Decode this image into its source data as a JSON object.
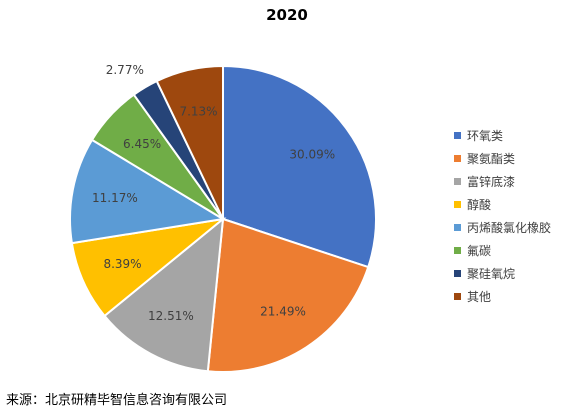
{
  "chart_data": {
    "type": "pie",
    "title": "2020",
    "categories": [
      "环氧类",
      "聚氨酯类",
      "富锌底漆",
      "醇酸",
      "丙烯酸氯化橡胶",
      "氟碳",
      "聚硅氧烷",
      "其他"
    ],
    "values": [
      30.09,
      21.49,
      12.51,
      8.39,
      11.17,
      6.45,
      2.77,
      7.13
    ],
    "labels": [
      "30.09%",
      "21.49%",
      "12.51%",
      "8.39%",
      "11.17%",
      "6.45%",
      "2.77%",
      "7.13%"
    ],
    "colors": [
      "#4472C4",
      "#ED7D31",
      "#A5A5A5",
      "#FFC000",
      "#5B9BD5",
      "#70AD47",
      "#264478",
      "#9E480E"
    ],
    "legend_position": "right",
    "start_angle": "12 o'clock",
    "direction": "clockwise"
  },
  "source_text": "来源：北京研精毕智信息咨询有限公司"
}
